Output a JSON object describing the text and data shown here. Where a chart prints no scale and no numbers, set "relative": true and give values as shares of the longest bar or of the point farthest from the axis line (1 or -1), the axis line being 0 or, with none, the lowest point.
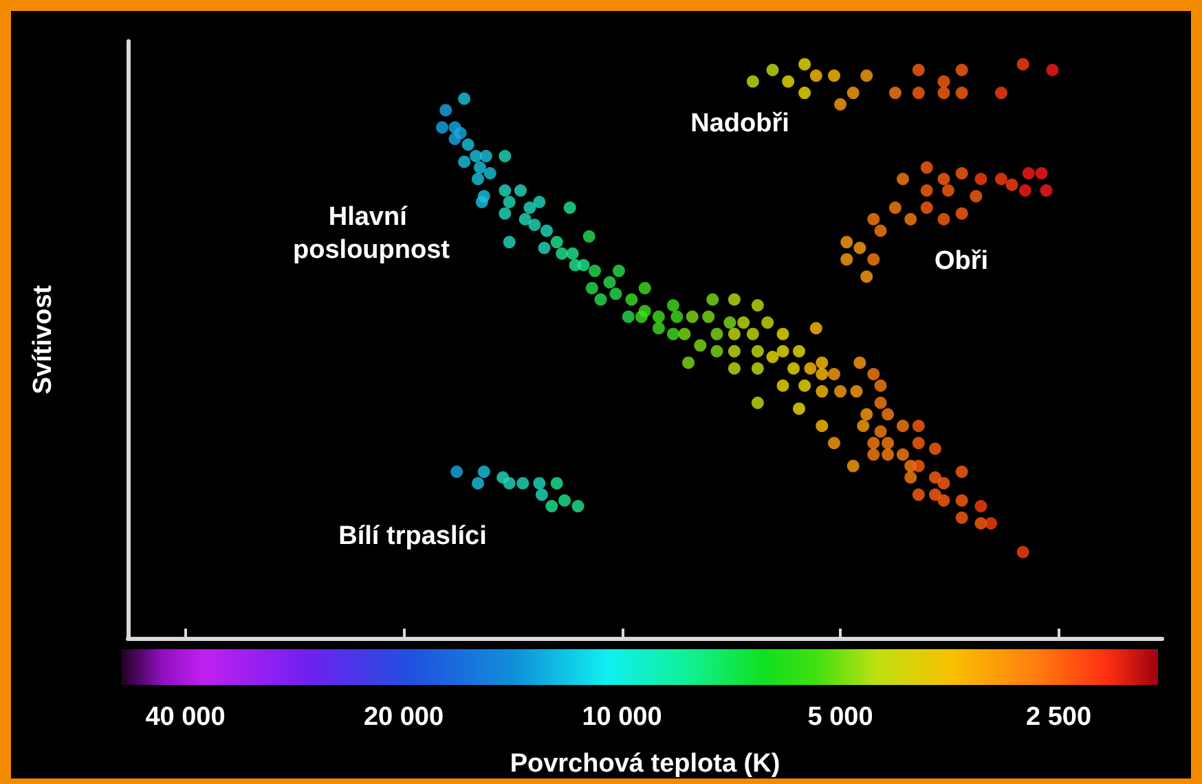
{
  "chart_data": {
    "type": "scatter",
    "xlabel": "Povrchová teplota (K)",
    "ylabel": "Svítivost",
    "relative": true,
    "log": "x",
    "marker": "circle",
    "xlim": [
      48000,
      1800
    ],
    "xticks": [
      {
        "value": 40000,
        "label": "40 000"
      },
      {
        "value": 20000,
        "label": "20 000"
      },
      {
        "value": 10000,
        "label": "10 000"
      },
      {
        "value": 5000,
        "label": "5 000"
      },
      {
        "value": 2500,
        "label": "2 500"
      }
    ],
    "annotations": [
      "Nadobři",
      "Hlavní posloupnost",
      "Obři",
      "Bílí trpaslíci"
    ],
    "x": [
      17500,
      16500,
      17700,
      17000,
      16700,
      17000,
      16300,
      16500,
      15900,
      15700,
      15400,
      14500,
      15200,
      15800,
      15500,
      15600,
      14500,
      13800,
      14300,
      14500,
      13400,
      13000,
      13600,
      13200,
      12700,
      11800,
      14300,
      12800,
      12300,
      12100,
      11700,
      11100,
      11300,
      10900,
      11600,
      10100,
      10400,
      11000,
      10700,
      10200,
      9700,
      9300,
      9300,
      9800,
      9400,
      8900,
      8500,
      8400,
      8900,
      8500,
      8200,
      8000,
      7600,
      7500,
      7800,
      7400,
      7400,
      7000,
      6500,
      7100,
      6800,
      7000,
      6600,
      7000,
      6500,
      6300,
      8100,
      7000,
      6500,
      6200,
      6000,
      6000,
      5700,
      5400,
      5800,
      5500,
      5300,
      6000,
      5600,
      5300,
      5100,
      5300,
      5000,
      4700,
      4750,
      6500,
      5700,
      5300,
      5100,
      4650,
      4500,
      4400,
      4400,
      4600,
      4300,
      4400,
      4500,
      4300,
      4800,
      4500,
      4300,
      4100,
      3900,
      3900,
      3700,
      4100,
      4000,
      3900,
      4000,
      3400,
      3700,
      3600,
      3900,
      3700,
      3600,
      3400,
      3200,
      3400,
      3200,
      3100,
      2800,
      6600,
      6200,
      5900,
      5600,
      5600,
      5400,
      5100,
      4800,
      5000,
      4600,
      4200,
      3900,
      3900,
      3600,
      3400,
      3600,
      3400,
      3000,
      2800,
      2550,
      3800,
      4100,
      3800,
      3600,
      3400,
      3200,
      3000,
      2900,
      2750,
      2640,
      2600,
      2780,
      3550,
      3250,
      3800,
      4200,
      3600,
      3400,
      4000,
      4500,
      4400,
      4900,
      4700,
      4900,
      4500,
      4600,
      16900,
      15500,
      15800,
      14600,
      14300,
      13700,
      13000,
      12300,
      12900,
      12500,
      12000,
      11500
    ],
    "values": [
      0.92,
      0.94,
      0.89,
      0.89,
      0.88,
      0.87,
      0.86,
      0.83,
      0.84,
      0.82,
      0.84,
      0.84,
      0.81,
      0.8,
      0.77,
      0.76,
      0.78,
      0.78,
      0.76,
      0.74,
      0.75,
      0.76,
      0.73,
      0.72,
      0.71,
      0.75,
      0.69,
      0.68,
      0.69,
      0.67,
      0.67,
      0.7,
      0.65,
      0.64,
      0.65,
      0.64,
      0.62,
      0.61,
      0.59,
      0.6,
      0.59,
      0.61,
      0.57,
      0.56,
      0.56,
      0.56,
      0.58,
      0.56,
      0.54,
      0.53,
      0.53,
      0.56,
      0.56,
      0.59,
      0.51,
      0.53,
      0.5,
      0.59,
      0.58,
      0.55,
      0.55,
      0.53,
      0.53,
      0.5,
      0.5,
      0.55,
      0.48,
      0.47,
      0.47,
      0.49,
      0.53,
      0.5,
      0.5,
      0.54,
      0.47,
      0.47,
      0.48,
      0.44,
      0.44,
      0.46,
      0.46,
      0.43,
      0.43,
      0.48,
      0.43,
      0.41,
      0.4,
      0.37,
      0.34,
      0.37,
      0.46,
      0.44,
      0.41,
      0.39,
      0.39,
      0.36,
      0.34,
      0.34,
      0.3,
      0.32,
      0.32,
      0.37,
      0.37,
      0.34,
      0.33,
      0.32,
      0.3,
      0.3,
      0.28,
      0.29,
      0.28,
      0.27,
      0.25,
      0.25,
      0.24,
      0.24,
      0.23,
      0.21,
      0.2,
      0.2,
      0.15,
      0.97,
      0.99,
      0.97,
      1,
      0.95,
      0.98,
      0.98,
      0.95,
      0.93,
      0.98,
      0.95,
      0.99,
      0.95,
      0.97,
      0.99,
      0.95,
      0.95,
      0.95,
      1,
      0.99,
      0.82,
      0.8,
      0.78,
      0.8,
      0.81,
      0.8,
      0.8,
      0.79,
      0.81,
      0.81,
      0.78,
      0.78,
      0.78,
      0.77,
      0.75,
      0.75,
      0.73,
      0.74,
      0.73,
      0.73,
      0.71,
      0.69,
      0.68,
      0.66,
      0.66,
      0.63,
      0.29,
      0.29,
      0.27,
      0.28,
      0.27,
      0.27,
      0.27,
      0.27,
      0.25,
      0.23,
      0.24,
      0.23
    ],
    "colors": [
      "#1aa8e8",
      "#1cc4e0",
      "#1aa8e8",
      "#1aa8e8",
      "#1aa8e8",
      "#1aa8e8",
      "#1cc4e0",
      "#1cc4e0",
      "#1cc4e0",
      "#1cc4e0",
      "#1cc4e0",
      "#20dcc0",
      "#1cc4e0",
      "#1cc4e0",
      "#1cc4e0",
      "#1cc4e0",
      "#20dcc0",
      "#20dcc0",
      "#20dcc0",
      "#20dcc0",
      "#20dcc0",
      "#20dcc0",
      "#20dcc0",
      "#20dcc0",
      "#20dcc0",
      "#20e890",
      "#20dcc0",
      "#20dcc0",
      "#20e890",
      "#20e890",
      "#20e890",
      "#28e050",
      "#20e890",
      "#28e050",
      "#20e890",
      "#28e050",
      "#28e050",
      "#28e050",
      "#28e050",
      "#28e050",
      "#40e020",
      "#40e020",
      "#40e020",
      "#28e050",
      "#40e020",
      "#40e020",
      "#40e020",
      "#40e020",
      "#40e020",
      "#40e020",
      "#7ee018",
      "#7ee018",
      "#7ee018",
      "#7ee018",
      "#7ee018",
      "#7ee018",
      "#7ee018",
      "#c8e010",
      "#c8e010",
      "#7ee018",
      "#c8e010",
      "#c8e010",
      "#c8e010",
      "#c8e010",
      "#c8e010",
      "#c8e010",
      "#7ee018",
      "#c8e010",
      "#c8e010",
      "#f0e000",
      "#f0e000",
      "#f0e000",
      "#f0e000",
      "#ffc000",
      "#f0e000",
      "#ffc000",
      "#ffc000",
      "#f0e000",
      "#f0e000",
      "#ffc000",
      "#ffa010",
      "#ffc000",
      "#ffa010",
      "#ffa010",
      "#ffa010",
      "#c8e010",
      "#f0e000",
      "#ffc000",
      "#ffa010",
      "#ffa010",
      "#ff8010",
      "#ff8010",
      "#ff8010",
      "#ffa010",
      "#ff8010",
      "#ff8010",
      "#ff8010",
      "#ff8010",
      "#ffa010",
      "#ff8010",
      "#ff8010",
      "#ff8010",
      "#ff6010",
      "#ff6010",
      "#ff6010",
      "#ff8010",
      "#ff8010",
      "#ff6010",
      "#ff8010",
      "#ff6010",
      "#ff6010",
      "#ff6010",
      "#ff6010",
      "#ff6010",
      "#ff6010",
      "#ff6010",
      "#ff4010",
      "#ff6010",
      "#ff6010",
      "#ff4010",
      "#ff4010",
      "#c8e010",
      "#c8e010",
      "#f0e000",
      "#f0e000",
      "#f0e000",
      "#ffc000",
      "#ffc000",
      "#ffa010",
      "#ffa010",
      "#ffa010",
      "#ff8010",
      "#ff6010",
      "#ff6010",
      "#ff6010",
      "#ff6010",
      "#ff6010",
      "#ff6010",
      "#ff4010",
      "#ff4010",
      "#ff1a1a",
      "#ff6010",
      "#ff8010",
      "#ff6010",
      "#ff6010",
      "#ff6010",
      "#ff4010",
      "#ff4010",
      "#ff4010",
      "#ff1a1a",
      "#ff1a1a",
      "#ff1a1a",
      "#ff1a1a",
      "#ff6010",
      "#ff6010",
      "#ff6010",
      "#ff8010",
      "#ff6010",
      "#ff6010",
      "#ff8010",
      "#ff8010",
      "#ff8010",
      "#ffa010",
      "#ffa010",
      "#ffa010",
      "#ff8010",
      "#ffa010",
      "#1aa8e8",
      "#1cc4e0",
      "#1cc4e0",
      "#20dcc0",
      "#20dcc0",
      "#20dcc0",
      "#20dcc0",
      "#20e890",
      "#20dcc0",
      "#20e890",
      "#20e890",
      "#20e890"
    ]
  }
}
